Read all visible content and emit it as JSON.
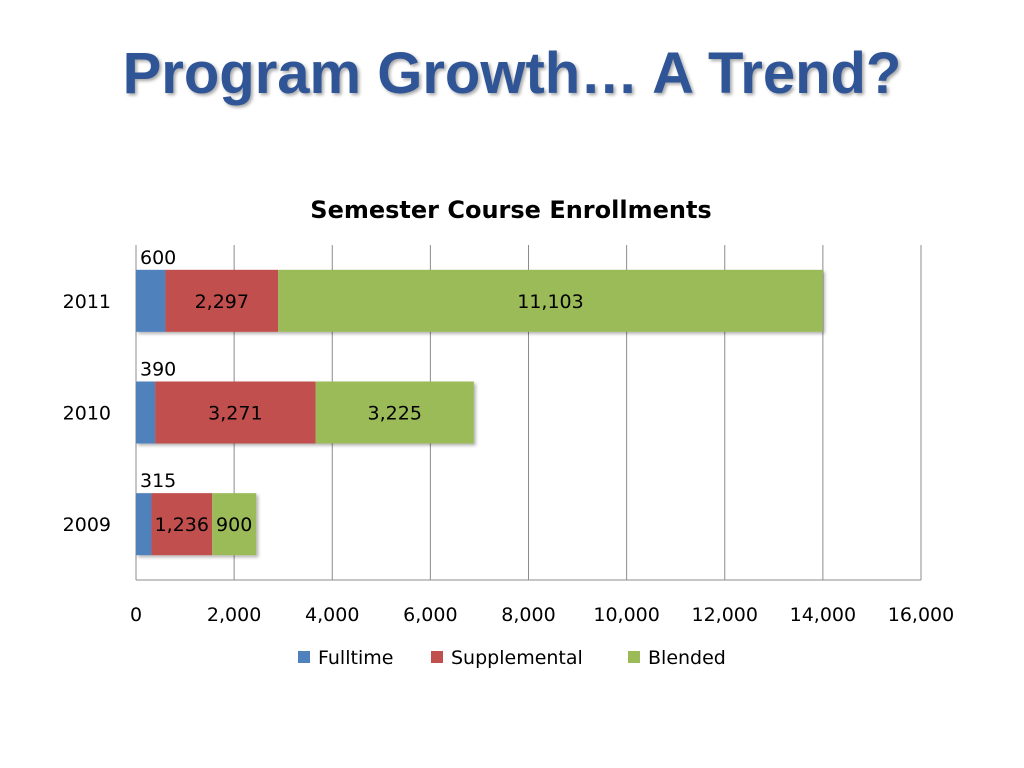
{
  "slide": {
    "title": "Program Growth… A Trend?"
  },
  "colors": {
    "title": "#2f5597",
    "fulltime": "#4f81bd",
    "supplemental": "#c0504d",
    "blended": "#9bbb59",
    "gridline": "#8c8c8c"
  },
  "chart_data": {
    "type": "bar",
    "orientation": "horizontal",
    "stacked": true,
    "title": "Semester Course Enrollments",
    "xlabel": "",
    "ylabel": "",
    "categories": [
      "2009",
      "2010",
      "2011"
    ],
    "series": [
      {
        "name": "Fulltime",
        "values": [
          315,
          390,
          600
        ],
        "labels": [
          "315",
          "390",
          "600"
        ]
      },
      {
        "name": "Supplemental",
        "values": [
          1236,
          3271,
          2297
        ],
        "labels": [
          "1,236",
          "3,271",
          "2,297"
        ]
      },
      {
        "name": "Blended",
        "values": [
          900,
          3225,
          11103
        ],
        "labels": [
          "900",
          "3,225",
          "11,103"
        ]
      }
    ],
    "xlim": [
      0,
      16000
    ],
    "xticks": [
      0,
      2000,
      4000,
      6000,
      8000,
      10000,
      12000,
      14000,
      16000
    ],
    "xtick_labels": [
      "0",
      "2,000",
      "4,000",
      "6,000",
      "8,000",
      "10,000",
      "12,000",
      "14,000",
      "16,000"
    ],
    "grid": "vertical",
    "legend": "bottom"
  }
}
